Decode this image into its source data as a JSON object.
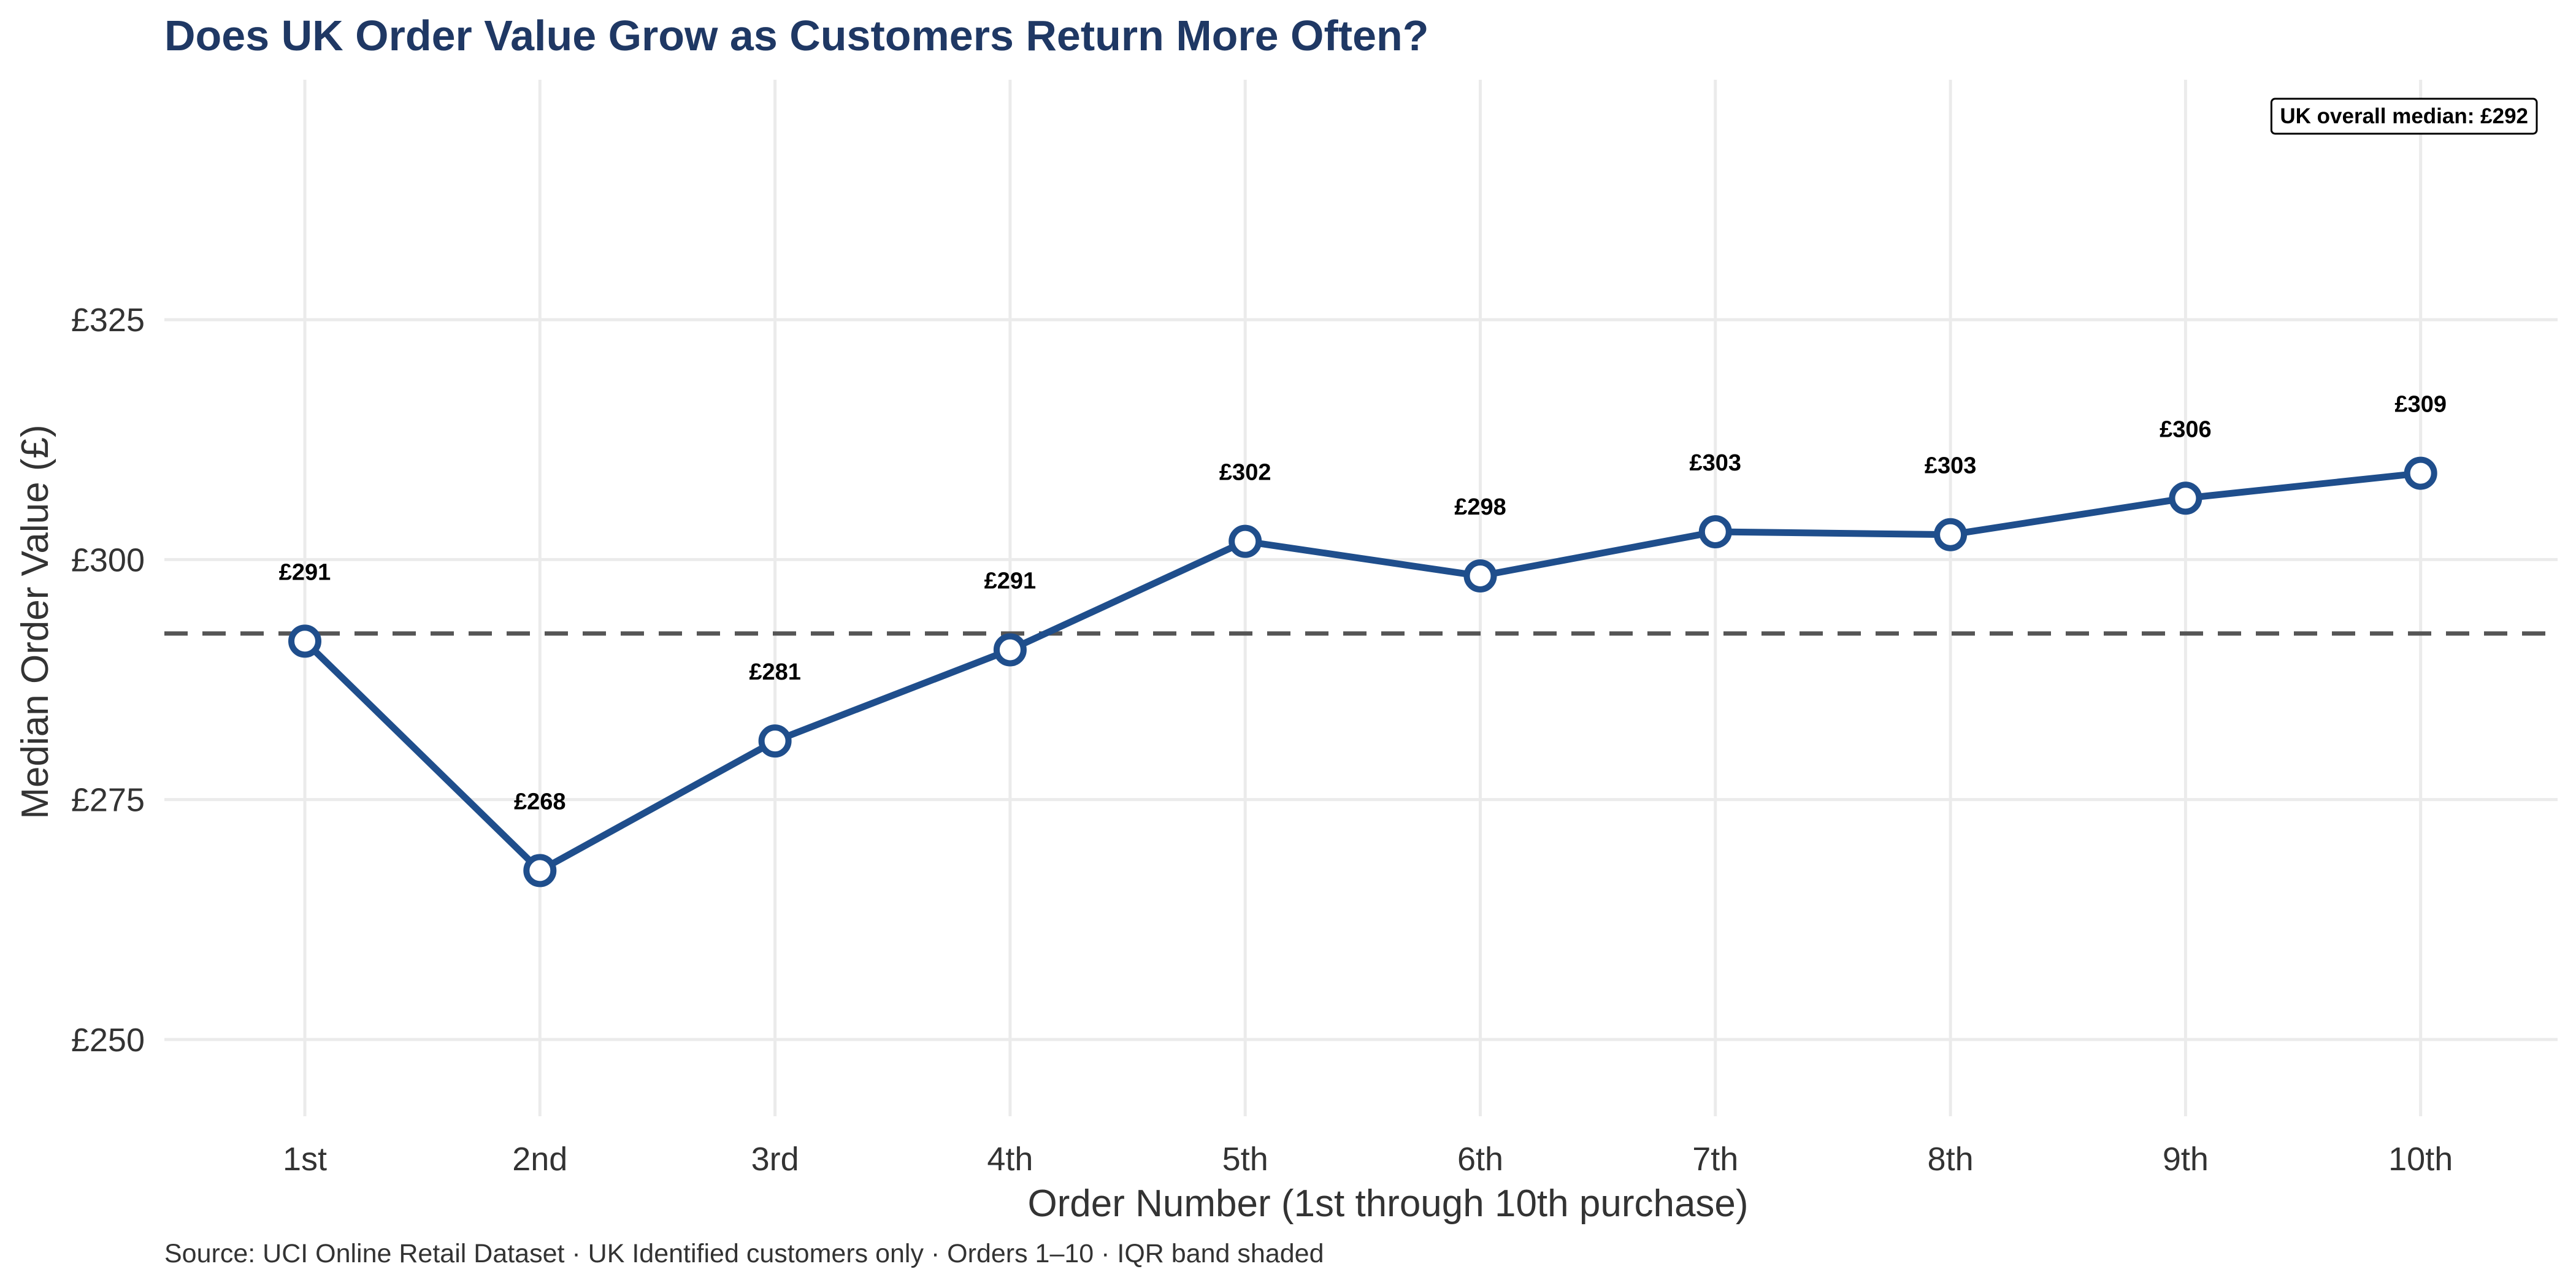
{
  "colors": {
    "line": "#1f4e8c",
    "title": "#1f3864",
    "grid": "#ebebeb",
    "reference": "#555555",
    "text": "#333333",
    "label": "#000000"
  },
  "chart_data": {
    "type": "line",
    "title": "Does UK Order Value Grow as Customers Return More Often?",
    "caption": "Source: UCI Online Retail Dataset · UK Identified customers only · Orders 1–10 · IQR band shaded",
    "xlabel": "Order Number (1st through 10th purchase)",
    "ylabel": "Median Order Value (£)",
    "categories": [
      "1st",
      "2nd",
      "3rd",
      "4th",
      "5th",
      "6th",
      "7th",
      "8th",
      "9th",
      "10th"
    ],
    "values": [
      291.5,
      267.6,
      281.1,
      290.6,
      301.9,
      298.3,
      302.9,
      302.6,
      306.4,
      309.0
    ],
    "data_labels": [
      "£291",
      "£268",
      "£281",
      "£291",
      "£302",
      "£298",
      "£303",
      "£303",
      "£306",
      "£309"
    ],
    "ylim": [
      242,
      350
    ],
    "yticks": [
      250,
      275,
      300,
      325
    ],
    "ytick_labels": [
      "£250",
      "£275",
      "£300",
      "£325"
    ],
    "reference_line": {
      "value": 292.3,
      "style": "dashed",
      "label": "UK overall median: £292",
      "label_position": "top-right"
    },
    "grid": true,
    "legend": "none"
  }
}
